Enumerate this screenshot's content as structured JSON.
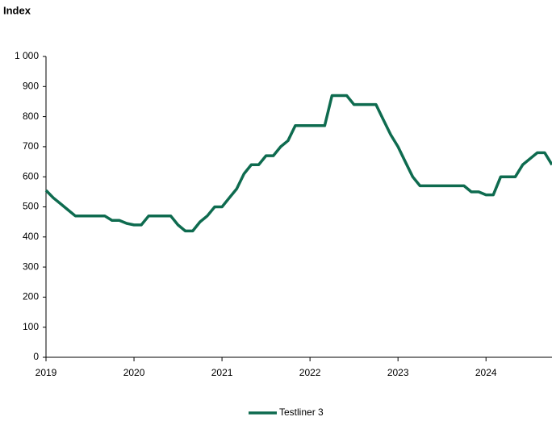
{
  "chart_data": {
    "type": "line",
    "y_label": "Index",
    "x": [
      2019,
      2019.083,
      2019.167,
      2019.25,
      2019.333,
      2019.417,
      2019.5,
      2019.583,
      2019.667,
      2019.75,
      2019.833,
      2019.917,
      2020,
      2020.083,
      2020.167,
      2020.25,
      2020.333,
      2020.417,
      2020.5,
      2020.583,
      2020.667,
      2020.75,
      2020.833,
      2020.917,
      2021,
      2021.083,
      2021.167,
      2021.25,
      2021.333,
      2021.417,
      2021.5,
      2021.583,
      2021.667,
      2021.75,
      2021.833,
      2021.917,
      2022,
      2022.083,
      2022.167,
      2022.25,
      2022.333,
      2022.417,
      2022.5,
      2022.583,
      2022.667,
      2022.75,
      2022.833,
      2022.917,
      2023,
      2023.083,
      2023.167,
      2023.25,
      2023.333,
      2023.417,
      2023.5,
      2023.583,
      2023.667,
      2023.75,
      2023.833,
      2023.917,
      2024,
      2024.083,
      2024.167,
      2024.25,
      2024.333,
      2024.417,
      2024.5,
      2024.583,
      2024.667,
      2024.75
    ],
    "series": [
      {
        "name": "Testliner 3",
        "color": "#0e6b4f",
        "values": [
          555,
          530,
          510,
          490,
          470,
          470,
          470,
          470,
          470,
          455,
          455,
          445,
          440,
          440,
          470,
          470,
          470,
          470,
          440,
          420,
          420,
          450,
          470,
          500,
          500,
          530,
          560,
          610,
          640,
          640,
          670,
          670,
          700,
          720,
          770,
          770,
          770,
          770,
          770,
          870,
          870,
          870,
          840,
          840,
          840,
          840,
          790,
          740,
          700,
          650,
          600,
          570,
          570,
          570,
          570,
          570,
          570,
          570,
          550,
          550,
          540,
          540,
          600,
          600,
          600,
          640,
          660,
          680,
          680,
          640
        ]
      }
    ],
    "xlim": [
      2019,
      2024.75
    ],
    "xticks": [
      2019,
      2020,
      2021,
      2022,
      2023,
      2024
    ],
    "ylim": [
      0,
      1000
    ],
    "yticks": [
      0,
      100,
      200,
      300,
      400,
      500,
      600,
      700,
      800,
      900,
      {
        "value": 1000,
        "label": "1 000"
      }
    ],
    "grid": false,
    "legend": "bottom"
  }
}
